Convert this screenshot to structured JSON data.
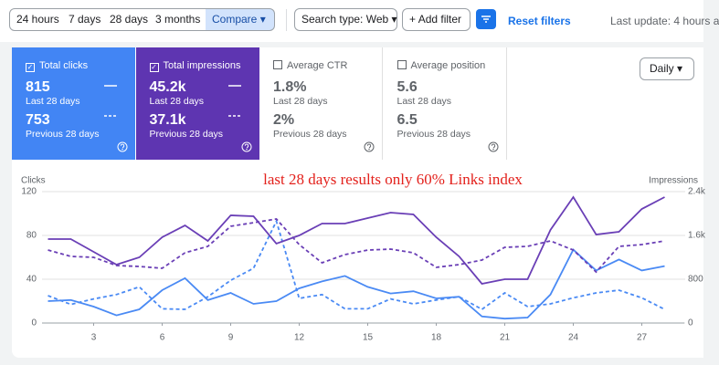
{
  "toolbar": {
    "ranges": [
      "24 hours",
      "7 days",
      "28 days",
      "3 months"
    ],
    "compare": "Compare",
    "search_type": "Search type: Web",
    "add_filter": "Add filter",
    "reset": "Reset filters",
    "last_update": "Last update: 4 hours a"
  },
  "cards": [
    {
      "label": "Total clicks",
      "value": "815",
      "period": "Last 28 days",
      "prev_value": "753",
      "prev_period": "Previous 28 days"
    },
    {
      "label": "Total impressions",
      "value": "45.2k",
      "period": "Last 28 days",
      "prev_value": "37.1k",
      "prev_period": "Previous 28 days"
    },
    {
      "label": "Average CTR",
      "value": "1.8%",
      "period": "Last 28 days",
      "prev_value": "2%",
      "prev_period": "Previous 28 days"
    },
    {
      "label": "Average position",
      "value": "5.6",
      "period": "Last 28 days",
      "prev_value": "6.5",
      "prev_period": "Previous 28 days"
    }
  ],
  "granularity": "Daily",
  "chart_data": {
    "type": "line",
    "ylabel": "Clicks",
    "y2label": "Impressions",
    "annotation": "last 28 days results only 60% Links index",
    "x": [
      1,
      2,
      3,
      4,
      5,
      6,
      7,
      8,
      9,
      10,
      11,
      12,
      13,
      14,
      15,
      16,
      17,
      18,
      19,
      20,
      21,
      22,
      23,
      24,
      25,
      26,
      27,
      28
    ],
    "xlim": [
      0.5,
      28.9
    ],
    "xticks": [
      3,
      6,
      9,
      12,
      15,
      18,
      21,
      24,
      27
    ],
    "ylim": [
      0,
      120
    ],
    "yticks": [
      0,
      40,
      80,
      120
    ],
    "y2lim": [
      0,
      2400
    ],
    "y2ticks": [
      0,
      800,
      {
        "value": 1600,
        "label": "1.6k"
      },
      {
        "value": 2400,
        "label": "2.4k"
      }
    ],
    "grid": true,
    "series": [
      {
        "color": "#4a8af4",
        "dashed": false,
        "values": [
          20,
          21,
          15,
          7,
          12.5,
          30,
          41,
          21,
          27.5,
          17.5,
          20,
          31.7,
          38,
          43,
          33,
          27,
          29,
          22.5,
          24,
          6,
          4,
          5,
          26,
          67,
          48,
          58,
          48,
          52
        ]
      },
      {
        "color": "#4a8af4",
        "dashed": true,
        "values": [
          25,
          17,
          22,
          26,
          33,
          13,
          12.5,
          24,
          39,
          50,
          93,
          22.5,
          26,
          13,
          13,
          22,
          17.5,
          21,
          24,
          12.5,
          27.5,
          15,
          17.5,
          23,
          27.5,
          30,
          23,
          12.5
        ]
      },
      {
        "color": "#6a3fb6",
        "dashed": false,
        "axis": "y2",
        "values": [
          1533,
          1533,
          1300,
          1067,
          1200,
          1567,
          1783,
          1500,
          1967,
          1950,
          1450,
          1600,
          1817,
          1817,
          1917,
          2017,
          1983,
          1567,
          1217,
          717,
          800,
          800,
          1700,
          2300,
          1617,
          1667,
          2083,
          2300
        ]
      },
      {
        "color": "#6a3fb6",
        "dashed": true,
        "axis": "y2",
        "values": [
          1333,
          1217,
          1200,
          1050,
          1033,
          1000,
          1283,
          1400,
          1767,
          1833,
          1900,
          1433,
          1100,
          1250,
          1333,
          1350,
          1283,
          1017,
          1067,
          1150,
          1383,
          1400,
          1500,
          1333,
          933,
          1400,
          1433,
          1500
        ]
      }
    ]
  }
}
